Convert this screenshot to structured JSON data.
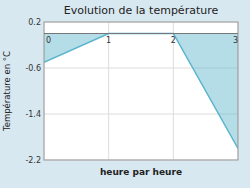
{
  "chart_data": {
    "type": "area",
    "title": "Evolution de la température",
    "xlabel": "heure par heure",
    "ylabel": "Température en °C",
    "x": [
      0,
      1,
      2,
      3
    ],
    "values": [
      -0.5,
      0.0,
      0.0,
      -2.0
    ],
    "color": "#5ab4cc",
    "xlim": [
      0,
      3
    ],
    "ylim": [
      -2.2,
      0.2
    ],
    "xticks": [
      0,
      1,
      2,
      3
    ],
    "yticks": [
      0.2,
      -0.6,
      -1.4,
      -2.2
    ],
    "grid": true
  }
}
